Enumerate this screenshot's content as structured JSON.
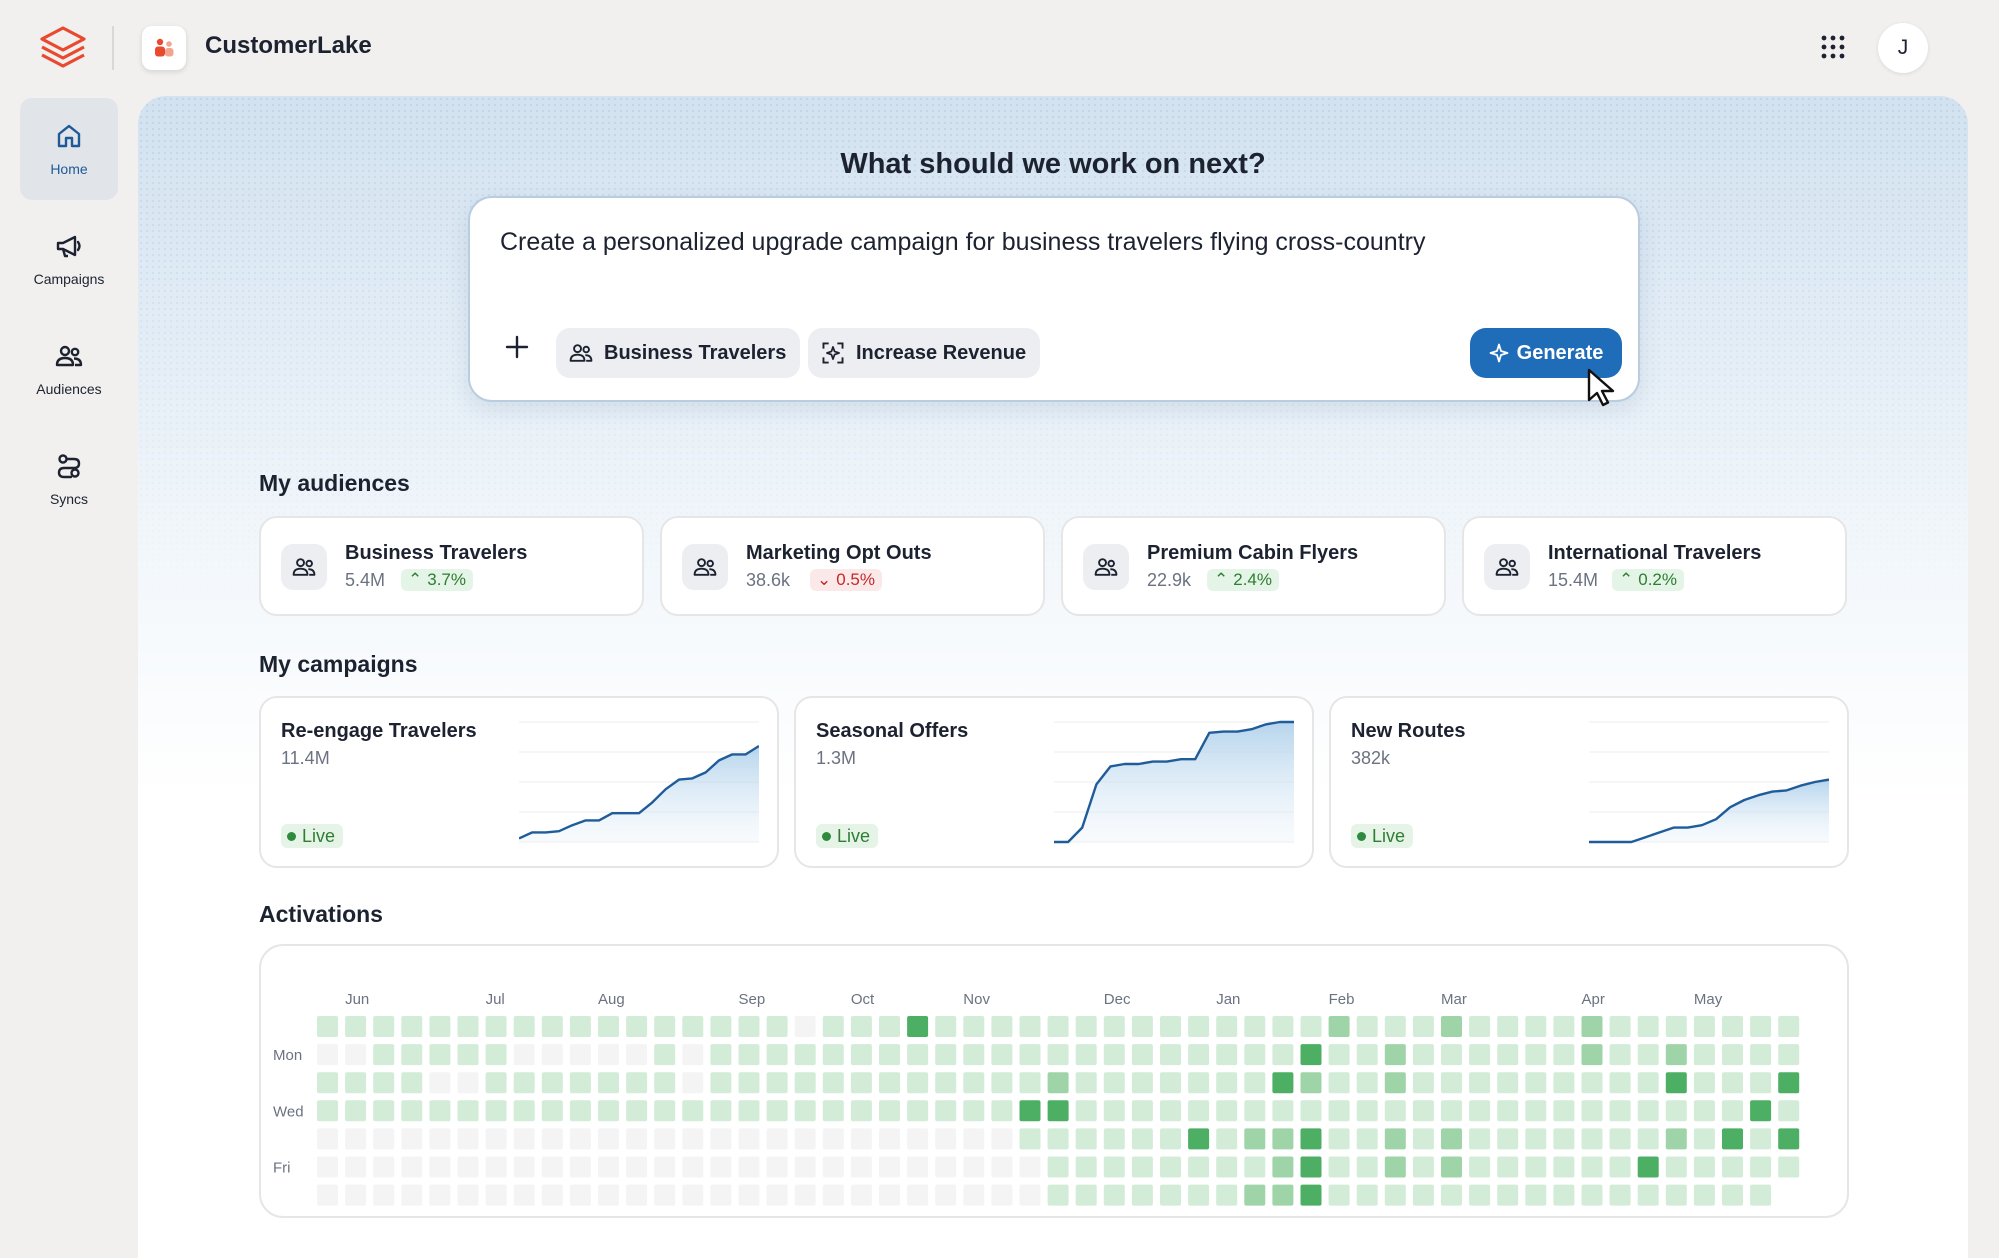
{
  "app": {
    "title": "CustomerLake",
    "user_initial": "J"
  },
  "sidebar": {
    "items": [
      {
        "label": "Home",
        "icon": "home-icon",
        "active": true
      },
      {
        "label": "Campaigns",
        "icon": "megaphone-icon",
        "active": false
      },
      {
        "label": "Audiences",
        "icon": "people-icon",
        "active": false
      },
      {
        "label": "Syncs",
        "icon": "sync-icon",
        "active": false
      }
    ]
  },
  "hero": {
    "title": "What should we work on next?",
    "prompt_text": "Create a personalized upgrade campaign for business travelers flying cross-country",
    "chips": [
      {
        "label": "Business Travelers",
        "icon": "people-icon"
      },
      {
        "label": "Increase Revenue",
        "icon": "target-icon"
      }
    ],
    "generate_label": "Generate"
  },
  "audiences": {
    "title": "My audiences",
    "items": [
      {
        "name": "Business Travelers",
        "count": "5.4M",
        "delta": "3.7%",
        "direction": "up"
      },
      {
        "name": "Marketing Opt Outs",
        "count": "38.6k",
        "delta": "0.5%",
        "direction": "down"
      },
      {
        "name": "Premium Cabin Flyers",
        "count": "22.9k",
        "delta": "2.4%",
        "direction": "up"
      },
      {
        "name": "International Travelers",
        "count": "15.4M",
        "delta": "0.2%",
        "direction": "up"
      }
    ]
  },
  "campaigns": {
    "title": "My campaigns",
    "items": [
      {
        "name": "Re-engage Travelers",
        "count": "11.4M",
        "status": "Live",
        "trend": [
          0.03,
          0.08,
          0.08,
          0.09,
          0.14,
          0.18,
          0.18,
          0.24,
          0.24,
          0.24,
          0.33,
          0.44,
          0.52,
          0.53,
          0.58,
          0.68,
          0.73,
          0.73,
          0.8
        ]
      },
      {
        "name": "Seasonal Offers",
        "count": "1.3M",
        "status": "Live",
        "trend": [
          0.0,
          0.0,
          0.12,
          0.48,
          0.63,
          0.65,
          0.65,
          0.67,
          0.67,
          0.69,
          0.69,
          0.91,
          0.92,
          0.92,
          0.94,
          0.98,
          1.0,
          1.0
        ]
      },
      {
        "name": "New Routes",
        "count": "382k",
        "status": "Live",
        "trend": [
          0.0,
          0.0,
          0.0,
          0.0,
          0.04,
          0.08,
          0.12,
          0.12,
          0.14,
          0.19,
          0.29,
          0.35,
          0.39,
          0.42,
          0.43,
          0.47,
          0.5,
          0.52
        ]
      }
    ]
  },
  "activations": {
    "title": "Activations",
    "months": [
      "Jun",
      "Jul",
      "Aug",
      "Sep",
      "Oct",
      "Nov",
      "Dec",
      "Jan",
      "Feb",
      "Mar",
      "Apr",
      "May"
    ],
    "month_columns": [
      1,
      6,
      10,
      15,
      19,
      23,
      28,
      32,
      36,
      40,
      45,
      49
    ],
    "day_labels": [
      {
        "label": "Mon",
        "row": 1
      },
      {
        "label": "Wed",
        "row": 3
      },
      {
        "label": "Fri",
        "row": 5
      }
    ],
    "weeks": 53,
    "high_cells": [
      [
        21,
        0
      ],
      [
        35,
        1
      ],
      [
        34,
        2
      ],
      [
        48,
        2
      ],
      [
        52,
        2
      ],
      [
        25,
        3
      ],
      [
        26,
        3
      ],
      [
        51,
        3
      ],
      [
        31,
        4
      ],
      [
        35,
        4
      ],
      [
        50,
        4
      ],
      [
        52,
        4
      ],
      [
        35,
        5
      ],
      [
        47,
        5
      ],
      [
        35,
        6
      ]
    ],
    "mid_cells": [
      [
        36,
        0
      ],
      [
        40,
        0
      ],
      [
        45,
        0
      ],
      [
        38,
        1
      ],
      [
        45,
        1
      ],
      [
        48,
        1
      ],
      [
        26,
        2
      ],
      [
        35,
        2
      ],
      [
        38,
        2
      ],
      [
        33,
        4
      ],
      [
        34,
        4
      ],
      [
        38,
        4
      ],
      [
        40,
        4
      ],
      [
        48,
        4
      ],
      [
        34,
        5
      ],
      [
        38,
        5
      ],
      [
        40,
        5
      ],
      [
        33,
        6
      ],
      [
        34,
        6
      ]
    ],
    "empty_cells": [
      [
        17,
        0
      ],
      [
        0,
        1
      ],
      [
        1,
        1
      ],
      [
        7,
        1
      ],
      [
        8,
        1
      ],
      [
        9,
        1
      ],
      [
        10,
        1
      ],
      [
        11,
        1
      ],
      [
        13,
        1
      ],
      [
        4,
        2
      ],
      [
        5,
        2
      ],
      [
        13,
        2
      ]
    ],
    "future_start": 51
  },
  "colors": {
    "accent": "#1f6cb8",
    "cell_empty": "#f4f4f4",
    "cell_low": "#d3ecd7",
    "cell_mid": "#9fd4a9",
    "cell_high": "#4caf64",
    "spark_line": "#1f5c99"
  }
}
